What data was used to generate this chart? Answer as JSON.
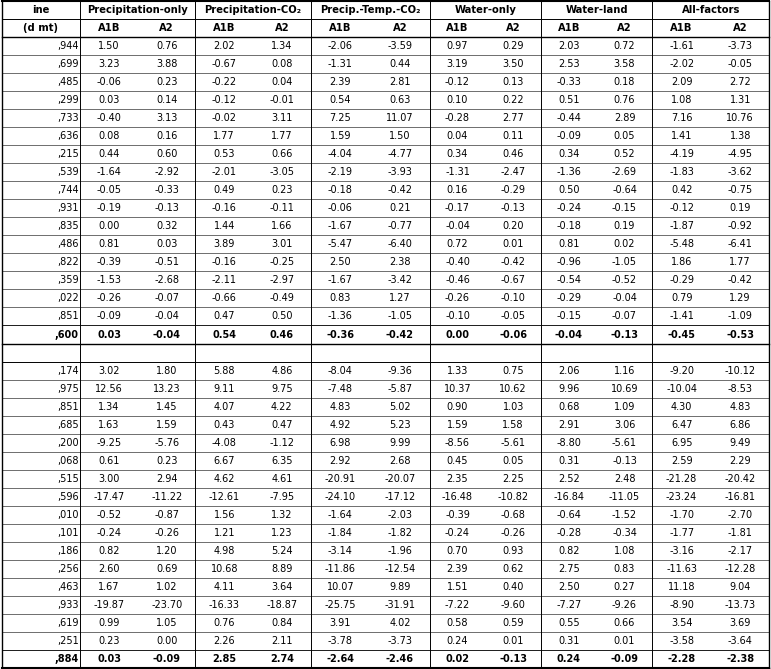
{
  "left_col": [
    ",944",
    ",699",
    ",485",
    ",299",
    ",733",
    ",636",
    ",215",
    ",539",
    ",744",
    ",931",
    ",835",
    ",486",
    ",822",
    ",359",
    ",022",
    ",851",
    ",600",
    ",174",
    ",975",
    ",851",
    ",685",
    ",200",
    ",068",
    ",515",
    ",596",
    ",010",
    ",101",
    ",186",
    ",256",
    ",463",
    ",933",
    ",619",
    ",251",
    ",884"
  ],
  "group_headers": [
    "Precipitation-only",
    "Precipitation-CO₂",
    "Precip.-Temp.-CO₂",
    "Water-only",
    "Water-land",
    "All-factors"
  ],
  "sub_headers": [
    "A1B",
    "A2",
    "A1B",
    "A2",
    "A1B",
    "A2",
    "A1B",
    "A2",
    "A1B",
    "A2",
    "A1B",
    "A2"
  ],
  "header_row1_left": "ine",
  "header_row2_left": "(d mt)",
  "data": [
    [
      1.5,
      0.76,
      2.02,
      1.34,
      -2.06,
      -3.59,
      0.97,
      0.29,
      2.03,
      0.72,
      -1.61,
      -3.73
    ],
    [
      3.23,
      3.88,
      -0.67,
      0.08,
      -1.31,
      0.44,
      3.19,
      3.5,
      2.53,
      3.58,
      -2.02,
      -0.05
    ],
    [
      -0.06,
      0.23,
      -0.22,
      0.04,
      2.39,
      2.81,
      -0.12,
      0.13,
      -0.33,
      0.18,
      2.09,
      2.72
    ],
    [
      0.03,
      0.14,
      -0.12,
      -0.01,
      0.54,
      0.63,
      0.1,
      0.22,
      0.51,
      0.76,
      1.08,
      1.31
    ],
    [
      -0.4,
      3.13,
      -0.02,
      3.11,
      7.25,
      11.07,
      -0.28,
      2.77,
      -0.44,
      2.89,
      7.16,
      10.76
    ],
    [
      0.08,
      0.16,
      1.77,
      1.77,
      1.59,
      1.5,
      0.04,
      0.11,
      -0.09,
      0.05,
      1.41,
      1.38
    ],
    [
      0.44,
      0.6,
      0.53,
      0.66,
      -4.04,
      -4.77,
      0.34,
      0.46,
      0.34,
      0.52,
      -4.19,
      -4.95
    ],
    [
      -1.64,
      -2.92,
      -2.01,
      -3.05,
      -2.19,
      -3.93,
      -1.31,
      -2.47,
      -1.36,
      -2.69,
      -1.83,
      -3.62
    ],
    [
      -0.05,
      -0.33,
      0.49,
      0.23,
      -0.18,
      -0.42,
      0.16,
      -0.29,
      0.5,
      -0.64,
      0.42,
      -0.75
    ],
    [
      -0.19,
      -0.13,
      -0.16,
      -0.11,
      -0.06,
      0.21,
      -0.17,
      -0.13,
      -0.24,
      -0.15,
      -0.12,
      0.19
    ],
    [
      0.0,
      0.32,
      1.44,
      1.66,
      -1.67,
      -0.77,
      -0.04,
      0.2,
      -0.18,
      0.19,
      -1.87,
      -0.92
    ],
    [
      0.81,
      0.03,
      3.89,
      3.01,
      -5.47,
      -6.4,
      0.72,
      0.01,
      0.81,
      0.02,
      -5.48,
      -6.41
    ],
    [
      -0.39,
      -0.51,
      -0.16,
      -0.25,
      2.5,
      2.38,
      -0.4,
      -0.42,
      -0.96,
      -1.05,
      1.86,
      1.77
    ],
    [
      -1.53,
      -2.68,
      -2.11,
      -2.97,
      -1.67,
      -3.42,
      -0.46,
      -0.67,
      -0.54,
      -0.52,
      -0.29,
      -0.42
    ],
    [
      -0.26,
      -0.07,
      -0.66,
      -0.49,
      0.83,
      1.27,
      -0.26,
      -0.1,
      -0.29,
      -0.04,
      0.79,
      1.29
    ],
    [
      -0.09,
      -0.04,
      0.47,
      0.5,
      -1.36,
      -1.05,
      -0.1,
      -0.05,
      -0.15,
      -0.07,
      -1.41,
      -1.09
    ],
    [
      0.03,
      -0.04,
      0.54,
      0.46,
      -0.36,
      -0.42,
      0.0,
      -0.06,
      -0.04,
      -0.13,
      -0.45,
      -0.53
    ],
    [
      3.02,
      1.8,
      5.88,
      4.86,
      -8.04,
      -9.36,
      1.33,
      0.75,
      2.06,
      1.16,
      -9.2,
      -10.12
    ],
    [
      12.56,
      13.23,
      9.11,
      9.75,
      -7.48,
      -5.87,
      10.37,
      10.62,
      9.96,
      10.69,
      -10.04,
      -8.53
    ],
    [
      1.34,
      1.45,
      4.07,
      4.22,
      4.83,
      5.02,
      0.9,
      1.03,
      0.68,
      1.09,
      4.3,
      4.83
    ],
    [
      1.63,
      1.59,
      0.43,
      0.47,
      4.92,
      5.23,
      1.59,
      1.58,
      2.91,
      3.06,
      6.47,
      6.86
    ],
    [
      -9.25,
      -5.76,
      -4.08,
      -1.12,
      6.98,
      9.99,
      -8.56,
      -5.61,
      -8.8,
      -5.61,
      6.95,
      9.49
    ],
    [
      0.61,
      0.23,
      6.67,
      6.35,
      2.92,
      2.68,
      0.45,
      0.05,
      0.31,
      -0.13,
      2.59,
      2.29
    ],
    [
      3.0,
      2.94,
      4.62,
      4.61,
      -20.91,
      -20.07,
      2.35,
      2.25,
      2.52,
      2.48,
      -21.28,
      -20.42
    ],
    [
      -17.47,
      -11.22,
      -12.61,
      -7.95,
      -24.1,
      -17.12,
      -16.48,
      -10.82,
      -16.84,
      -11.05,
      -23.24,
      -16.81
    ],
    [
      -0.52,
      -0.87,
      1.56,
      1.32,
      -1.64,
      -2.03,
      -0.39,
      -0.68,
      -0.64,
      -1.52,
      -1.7,
      -2.7
    ],
    [
      -0.24,
      -0.26,
      1.21,
      1.23,
      -1.84,
      -1.82,
      -0.24,
      -0.26,
      -0.28,
      -0.34,
      -1.77,
      -1.81
    ],
    [
      0.82,
      1.2,
      4.98,
      5.24,
      -3.14,
      -1.96,
      0.7,
      0.93,
      0.82,
      1.08,
      -3.16,
      -2.17
    ],
    [
      2.6,
      0.69,
      10.68,
      8.89,
      -11.86,
      -12.54,
      2.39,
      0.62,
      2.75,
      0.83,
      -11.63,
      -12.28
    ],
    [
      1.67,
      1.02,
      4.11,
      3.64,
      10.07,
      9.89,
      1.51,
      0.4,
      2.5,
      0.27,
      11.18,
      9.04
    ],
    [
      -19.87,
      -23.7,
      -16.33,
      -18.87,
      -25.75,
      -31.91,
      -7.22,
      -9.6,
      -7.27,
      -9.26,
      -8.9,
      -13.73
    ],
    [
      0.99,
      1.05,
      0.76,
      0.84,
      3.91,
      4.02,
      0.58,
      0.59,
      0.55,
      0.66,
      3.54,
      3.69
    ],
    [
      0.23,
      0.0,
      2.26,
      2.11,
      -3.78,
      -3.73,
      0.24,
      0.01,
      0.31,
      0.01,
      -3.58,
      -3.64
    ],
    [
      0.03,
      -0.09,
      2.85,
      2.74,
      -2.64,
      -2.46,
      0.02,
      -0.13,
      0.24,
      -0.09,
      -2.28,
      -2.38
    ]
  ],
  "bold_indices": [
    16,
    33
  ]
}
